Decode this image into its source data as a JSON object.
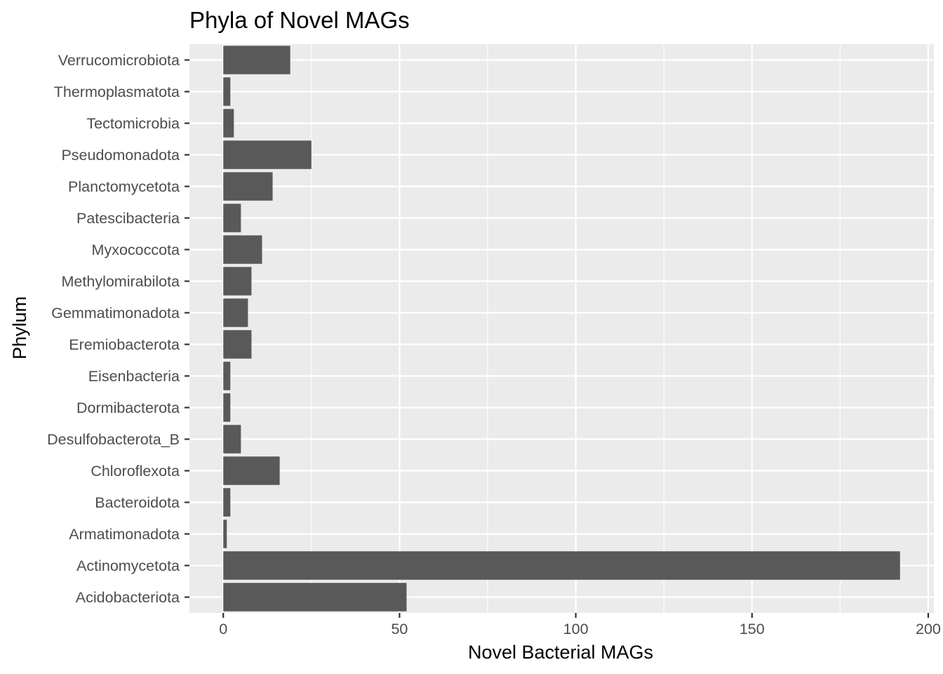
{
  "chart_data": {
    "type": "bar",
    "orientation": "horizontal",
    "title": "Phyla of Novel MAGs",
    "xlabel": "Novel Bacterial MAGs",
    "ylabel": "Phylum",
    "categories": [
      "Acidobacteriota",
      "Actinomycetota",
      "Armatimonadota",
      "Bacteroidota",
      "Chloroflexota",
      "Desulfobacterota_B",
      "Dormibacterota",
      "Eisenbacteria",
      "Eremiobacterota",
      "Gemmatimonadota",
      "Methylomirabilota",
      "Myxococcota",
      "Patescibacteria",
      "Planctomycetota",
      "Pseudomonadota",
      "Tectomicrobia",
      "Thermoplasmatota",
      "Verrucomicrobiota"
    ],
    "values": [
      52,
      192,
      1,
      2,
      16,
      5,
      2,
      2,
      8,
      7,
      8,
      11,
      5,
      14,
      25,
      3,
      2,
      19
    ],
    "xlim": [
      -9.6,
      201.6
    ],
    "xticks": [
      0,
      50,
      100,
      150,
      200
    ],
    "grid": true,
    "legend": "none",
    "colors": {
      "bar": "#595959",
      "panel": "#ebebeb",
      "grid": "#ffffff",
      "tick_text": "#4d4d4d",
      "tick_mark": "#333333"
    }
  }
}
